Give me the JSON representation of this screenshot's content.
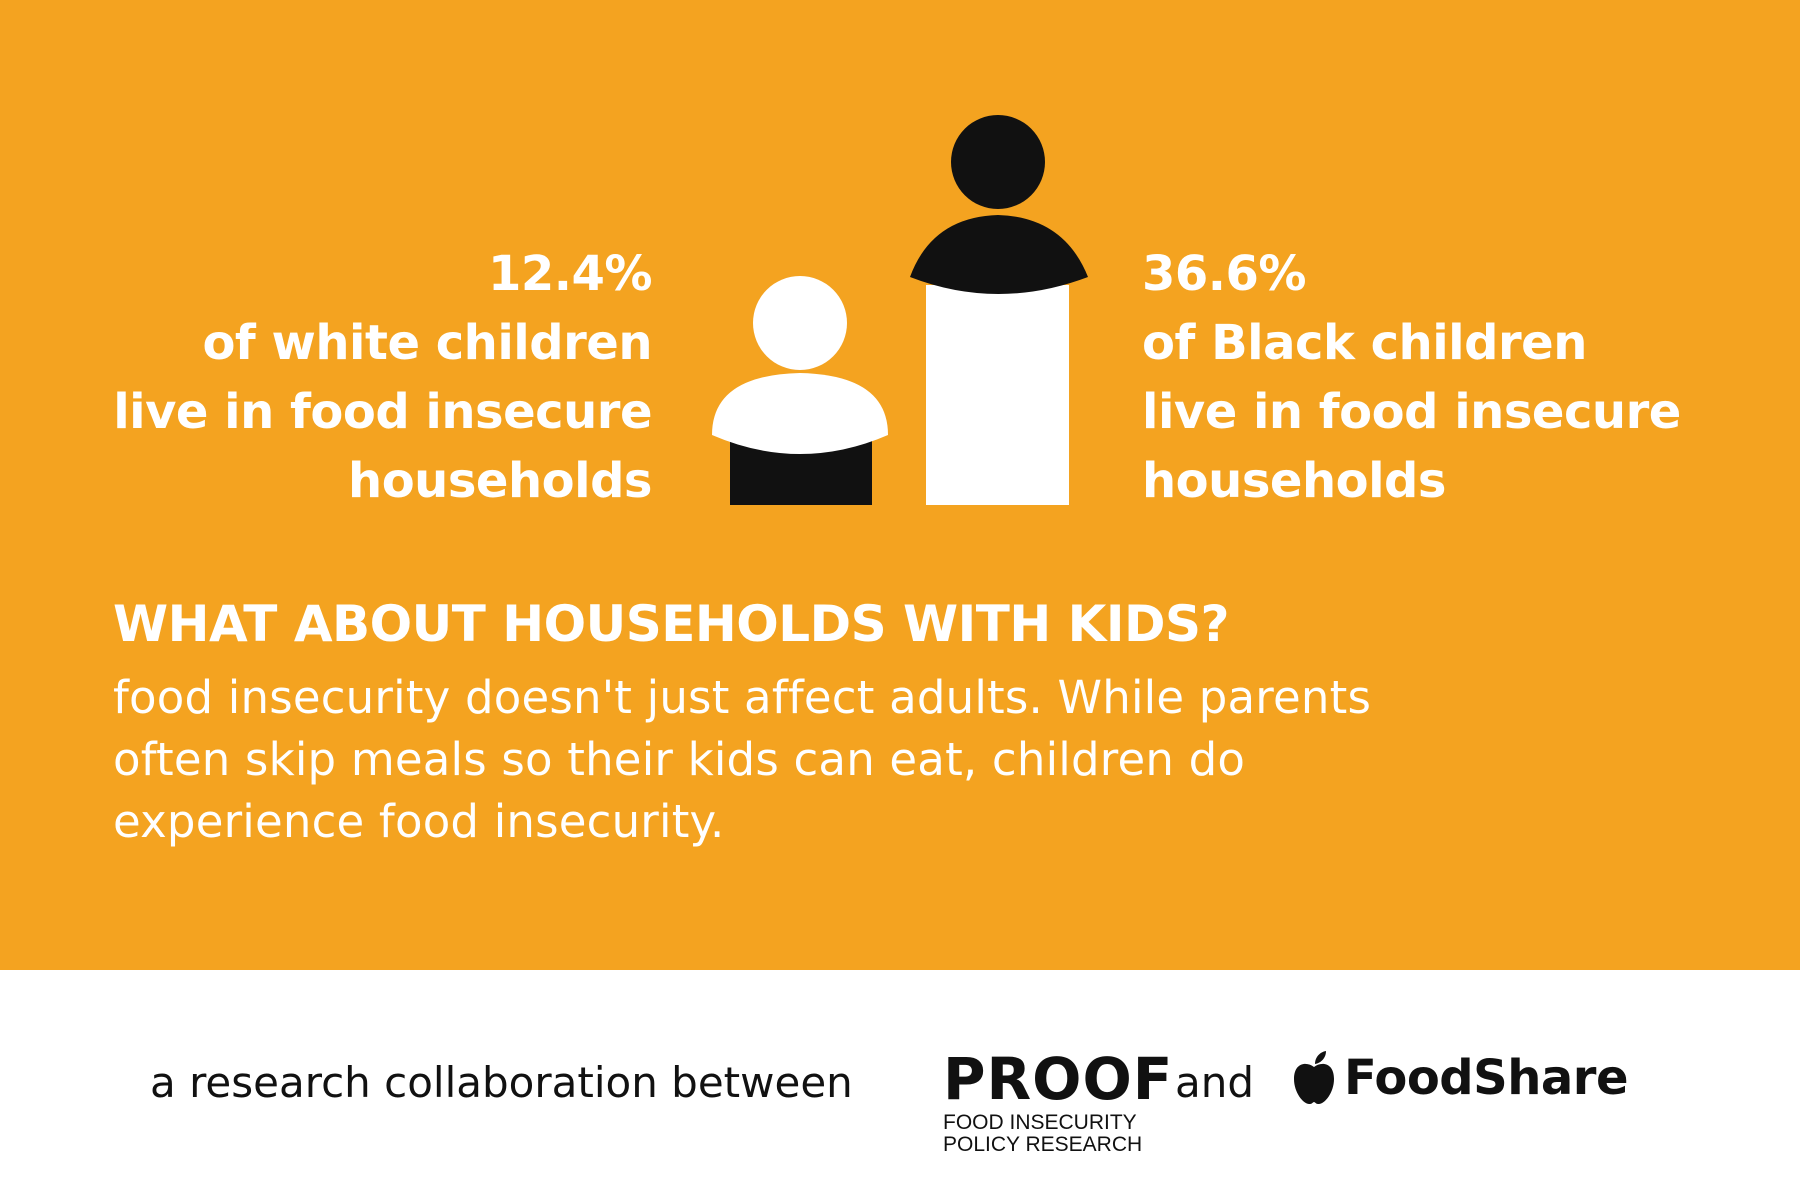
{
  "colors": {
    "background": "#F4A320",
    "footer": "#FFFFFF",
    "text_light": "#FFFFFF",
    "text_dark": "#111111",
    "figure_white": "#FFFFFF",
    "figure_black": "#111111"
  },
  "stats": {
    "left": {
      "percent": "12.4%",
      "line1": "of white children",
      "line2": "live in food insecure",
      "line3": "households"
    },
    "right": {
      "percent": "36.6%",
      "line1": "of Black children",
      "line2": "live in food insecure",
      "line3": "households"
    }
  },
  "figures": {
    "left_icon": "person-small-icon",
    "right_icon": "person-large-icon"
  },
  "section": {
    "heading": "WHAT ABOUT HOUSEHOLDS WITH KIDS?",
    "body_line1": "food insecurity doesn't just affect adults. While parents",
    "body_line2": "often skip meals so their kids can eat, children do",
    "body_line3": "experience food insecurity."
  },
  "footer": {
    "collab_text": "a research collaboration between",
    "proof_name": "PROOF",
    "proof_sub1": "FOOD INSECURITY",
    "proof_sub2": "POLICY RESEARCH",
    "and_text": "and",
    "foodshare_icon": "apple-icon",
    "foodshare_name": "FoodShare"
  }
}
